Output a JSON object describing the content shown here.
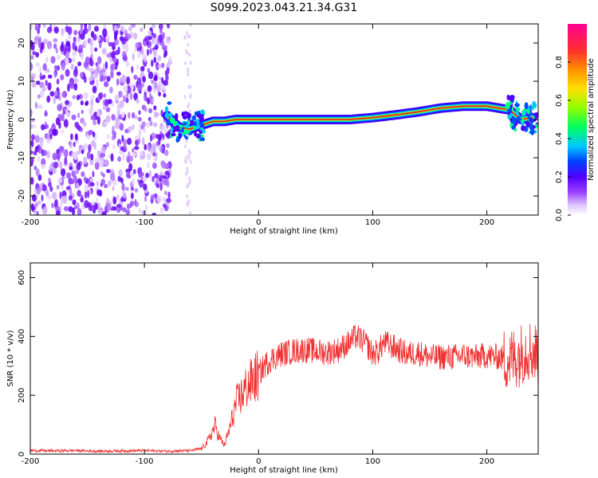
{
  "figure": {
    "title": "S099.2023.043.21.34.G31"
  },
  "chart_data": [
    {
      "type": "heatmap",
      "xlabel": "Height of straight line (km)",
      "ylabel": "Frequency (Hz)",
      "xlim": [
        -200,
        245
      ],
      "ylim": [
        -25,
        25
      ],
      "xticks": [
        -200,
        -100,
        0,
        100,
        200
      ],
      "yticks": [
        -20,
        -10,
        0,
        10,
        20
      ],
      "colorbar": {
        "label": "Normalized spectral amplitude",
        "range": [
          0,
          1
        ],
        "ticks": [
          "0.0",
          "0.2",
          "0.4",
          "0.6",
          "0.8"
        ],
        "colors": [
          "#ffffff",
          "#e0c8ff",
          "#7000ff",
          "#0030ff",
          "#00c8ff",
          "#00ff60",
          "#d0ff00",
          "#ffb000",
          "#ff3030",
          "#ff0090"
        ]
      },
      "ridge": {
        "x": [
          -80,
          -70,
          -60,
          -50,
          -40,
          -30,
          -20,
          -10,
          0,
          20,
          40,
          60,
          80,
          100,
          120,
          140,
          160,
          180,
          200,
          220,
          230,
          240
        ],
        "y": [
          1,
          -2,
          -2.5,
          -1.5,
          -0.5,
          -0.5,
          0,
          0,
          0,
          0,
          0,
          0,
          0,
          0.5,
          1.2,
          2,
          3,
          3.5,
          3.5,
          2.5,
          0,
          0.5
        ]
      },
      "noise_region": {
        "x_from": -200,
        "x_to": -80
      }
    },
    {
      "type": "line",
      "xlabel": "Height of straight line (km)",
      "ylabel": "SNR (10 * v/v)",
      "xlim": [
        -200,
        245
      ],
      "ylim": [
        0,
        650
      ],
      "xticks": [
        -200,
        -100,
        0,
        100,
        200
      ],
      "yticks": [
        0,
        200,
        400,
        600
      ],
      "color": "#f03030",
      "series": [
        {
          "x": [
            -200,
            -180,
            -160,
            -140,
            -120,
            -100,
            -80,
            -60,
            -50,
            -45,
            -40,
            -38,
            -35,
            -30,
            -25,
            -20,
            -15,
            -10,
            -5,
            0,
            5,
            10,
            20,
            30,
            40,
            50,
            60,
            70,
            80,
            85,
            90,
            95,
            100,
            105,
            110,
            120,
            130,
            140,
            150,
            160,
            170,
            180,
            190,
            200,
            210,
            220,
            225,
            230,
            235,
            240,
            245
          ],
          "y": [
            12,
            11,
            12,
            10,
            11,
            12,
            10,
            12,
            18,
            40,
            80,
            100,
            60,
            30,
            90,
            170,
            200,
            230,
            250,
            270,
            300,
            320,
            340,
            350,
            355,
            350,
            345,
            355,
            380,
            400,
            390,
            370,
            340,
            350,
            380,
            360,
            340,
            345,
            330,
            330,
            330,
            335,
            330,
            335,
            330,
            320,
            330,
            340,
            360,
            350,
            340
          ]
        }
      ]
    }
  ]
}
